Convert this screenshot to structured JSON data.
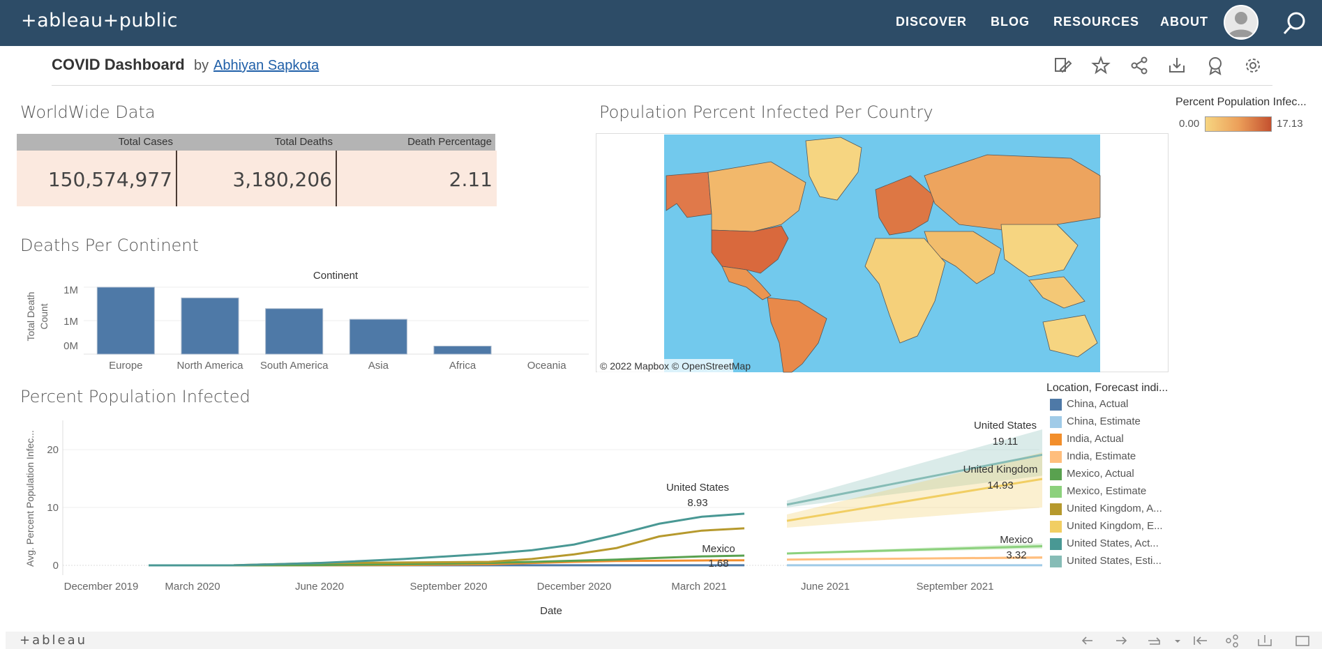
{
  "header": {
    "logo": "+ableau+public",
    "nav": [
      "DISCOVER",
      "BLOG",
      "RESOURCES",
      "ABOUT"
    ]
  },
  "viz": {
    "title": "COVID Dashboard",
    "by": "by",
    "author": "Abhiyan Sapkota"
  },
  "worldwide": {
    "title": "WorldWide Data",
    "headers": [
      "Total Cases",
      "Total Deaths",
      "Death Percentage"
    ],
    "values": [
      "150,574,977",
      "3,180,206",
      "2.11"
    ]
  },
  "map": {
    "title": "Population Percent Infected Per Country",
    "attribution": "© 2022 Mapbox  © OpenStreetMap",
    "legend_title": "Percent Population Infec...",
    "legend_min": "0.00",
    "legend_max": "17.13",
    "colors": {
      "low": "#f6d581",
      "high": "#c4512f",
      "ocean": "#72c9ed"
    }
  },
  "continent_chart": {
    "title": "Deaths Per Continent",
    "column_header": "Continent",
    "ylabel_line1": "Total Death",
    "ylabel_line2": "Count",
    "yticks": [
      "1M",
      "1M",
      "0M"
    ]
  },
  "line_chart": {
    "title": "Percent Population Infected",
    "ylabel": "Avg. Percent Population Infec...",
    "xlabel": "Date",
    "yticks": [
      "20",
      "10",
      "0"
    ],
    "xticks": [
      "December 2019",
      "March 2020",
      "June 2020",
      "September 2020",
      "December 2020",
      "March 2021",
      "June 2021",
      "September 2021"
    ],
    "annotations": [
      {
        "name": "United States",
        "value": "8.93"
      },
      {
        "name": "Mexico",
        "value": "1.68"
      },
      {
        "name": "United States",
        "value": "19.11"
      },
      {
        "name": "United Kingdom",
        "value": "14.93"
      },
      {
        "name": "Mexico",
        "value": "3.32"
      }
    ],
    "legend_title": "Location, Forecast indi...",
    "legend": [
      {
        "label": "China, Actual",
        "color": "#4e79a7"
      },
      {
        "label": "China, Estimate",
        "color": "#a0cbe8"
      },
      {
        "label": "India, Actual",
        "color": "#f28e2b"
      },
      {
        "label": "India, Estimate",
        "color": "#ffbe7d"
      },
      {
        "label": "Mexico, Actual",
        "color": "#59a14f"
      },
      {
        "label": "Mexico, Estimate",
        "color": "#8cd17d"
      },
      {
        "label": "United Kingdom, A...",
        "color": "#b6992d"
      },
      {
        "label": "United Kingdom, E...",
        "color": "#f1ce63"
      },
      {
        "label": "United States, Act...",
        "color": "#499894"
      },
      {
        "label": "United States, Esti...",
        "color": "#86bcb6"
      }
    ]
  },
  "footer": {
    "brand": "+ableau"
  },
  "chart_data": [
    {
      "type": "bar",
      "title": "Deaths Per Continent",
      "xlabel": "Continent",
      "ylabel": "Total Death Count",
      "categories": [
        "Europe",
        "North America",
        "South America",
        "Asia",
        "Africa",
        "Oceania"
      ],
      "values": [
        1000000,
        840000,
        680000,
        520000,
        120000,
        1000
      ],
      "ylim": [
        0,
        1000000
      ],
      "color": "#4e79a7"
    },
    {
      "type": "line",
      "title": "Percent Population Infected",
      "xlabel": "Date",
      "ylabel": "Avg. Percent Population Infec...",
      "ylim": [
        0,
        25
      ],
      "x": [
        "2020-01",
        "2020-03",
        "2020-05",
        "2020-07",
        "2020-09",
        "2020-10",
        "2020-11",
        "2020-12",
        "2021-01",
        "2021-02",
        "2021-03"
      ],
      "series": [
        {
          "name": "United States, Actual",
          "values": [
            0,
            0.01,
            0.4,
            1.1,
            2.0,
            2.6,
            3.6,
            5.3,
            7.2,
            8.4,
            8.93
          ]
        },
        {
          "name": "United Kingdom, Actual",
          "values": [
            0,
            0.01,
            0.4,
            0.5,
            0.6,
            1.1,
            1.9,
            3.0,
            5.0,
            6.0,
            6.4
          ]
        },
        {
          "name": "Mexico, Actual",
          "values": [
            0,
            0,
            0.05,
            0.2,
            0.4,
            0.6,
            0.8,
            1.0,
            1.3,
            1.55,
            1.68
          ]
        },
        {
          "name": "India, Actual",
          "values": [
            0,
            0,
            0.01,
            0.05,
            0.2,
            0.4,
            0.6,
            0.75,
            0.8,
            0.85,
            0.87
          ]
        },
        {
          "name": "China, Actual",
          "values": [
            0,
            0,
            0.01,
            0.01,
            0.01,
            0.01,
            0.01,
            0.01,
            0.01,
            0.01,
            0.01
          ]
        }
      ],
      "forecast": {
        "x": [
          "2021-04",
          "2021-10"
        ],
        "series": [
          {
            "name": "United States, Estimate",
            "values": [
              10.5,
              19.11
            ],
            "band_low": [
              10.0,
              15.5
            ],
            "band_high": [
              11.2,
              23.5
            ]
          },
          {
            "name": "United Kingdom, Estimate",
            "values": [
              7.7,
              14.93
            ],
            "band_low": [
              6.5,
              10.0
            ],
            "band_high": [
              8.8,
              19.5
            ]
          },
          {
            "name": "Mexico, Estimate",
            "values": [
              2.05,
              3.32
            ],
            "band_low": [
              1.9,
              2.9
            ],
            "band_high": [
              2.2,
              3.8
            ]
          },
          {
            "name": "India, Estimate",
            "values": [
              1.0,
              1.35
            ],
            "band_low": [
              0.9,
              1.1
            ],
            "band_high": [
              1.1,
              1.6
            ]
          },
          {
            "name": "China, Estimate",
            "values": [
              0.01,
              0.01
            ],
            "band_low": [
              0.0,
              0.0
            ],
            "band_high": [
              0.02,
              0.02
            ]
          }
        ]
      }
    }
  ]
}
